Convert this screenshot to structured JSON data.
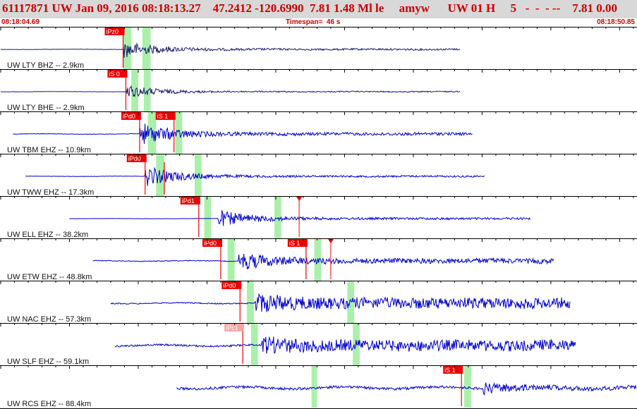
{
  "header": {
    "title": "61117871 UW Jan 09, 2016 08:18:13.27    47.2412 -120.6990  7.81 1.48 Ml le     amyw      UW 01 H     5   -  -  - --    7.81 0.00",
    "start_time": "08:18:04.69",
    "timespan": "Timespan=  46 s",
    "end_time": "08:18:50.85"
  },
  "colors": {
    "trace": "#0000cc",
    "trace_dark": "#1a1a6e",
    "pick": "#ee0000",
    "pick_faint": "#f3a6a6",
    "window": "#aaf0aa",
    "header_bg": "#d8d8d8",
    "header_text": "#cc0000"
  },
  "channels": [
    {
      "label": "UW LTY BHZ -- 2.9km",
      "trace_dark": true,
      "amp": 0.45,
      "noise": 0.02,
      "coda": 0.1,
      "start_s": 0.0,
      "end_s": 33.4,
      "arrival_s": 8.9,
      "picks": [
        {
          "name": "iPz0",
          "t": 8.9
        }
      ],
      "windows_s": [
        [
          8.9,
          9.5
        ],
        [
          10.3,
          10.9
        ]
      ]
    },
    {
      "label": "UW LTY BHE -- 2.9km",
      "trace_dark": true,
      "amp": 0.35,
      "noise": 0.02,
      "coda": 0.08,
      "start_s": 0.0,
      "end_s": 33.4,
      "arrival_s": 9.1,
      "picks": [
        {
          "name": "iS 0",
          "t": 9.1
        }
      ],
      "windows_s": [
        [
          9.5,
          10.0
        ],
        [
          10.4,
          10.9
        ]
      ]
    },
    {
      "label": "UW TBM EHZ -- 10.9km",
      "amp": 0.6,
      "noise": 0.02,
      "coda": 0.12,
      "start_s": 0.9,
      "end_s": 34.3,
      "arrival_s": 10.1,
      "picks": [
        {
          "name": "iPd0",
          "t": 10.1
        },
        {
          "name": "iS 1",
          "t": 12.6
        }
      ],
      "windows_s": [
        [
          10.7,
          11.3
        ],
        [
          12.7,
          13.2
        ]
      ]
    },
    {
      "label": "UW TWW EHZ -- 17.3km",
      "amp": 0.55,
      "noise": 0.015,
      "coda": 0.08,
      "start_s": 1.8,
      "end_s": 35.2,
      "arrival_s": 10.5,
      "picks": [
        {
          "name": "iPd0",
          "t": 10.5
        },
        {
          "name": "",
          "t": 11.9,
          "faint": true
        }
      ],
      "windows_s": [
        [
          11.3,
          11.9
        ],
        [
          14.1,
          14.6
        ]
      ]
    },
    {
      "label": "UW ELL EHZ -- 38.2km",
      "amp": 0.45,
      "noise": 0.01,
      "coda": 0.12,
      "start_s": 5.0,
      "end_s": 38.5,
      "arrival_s": 15.8,
      "picks": [
        {
          "name": "iPd1",
          "t": 14.4
        },
        {
          "name": "",
          "t": 21.7,
          "marker": true
        }
      ],
      "windows_s": [
        [
          14.8,
          15.3
        ],
        [
          19.9,
          20.4
        ]
      ]
    },
    {
      "label": "UW ETW EHZ -- 48.8km",
      "amp": 0.5,
      "noise": 0.04,
      "coda": 0.25,
      "start_s": 6.7,
      "end_s": 40.2,
      "arrival_s": 17.3,
      "picks": [
        {
          "name": "iPd0",
          "t": 16.0
        },
        {
          "name": "iS 1",
          "t": 22.2
        },
        {
          "name": "",
          "t": 24.0,
          "marker": true
        }
      ],
      "windows_s": [
        [
          16.5,
          17.0
        ],
        [
          22.8,
          23.3
        ]
      ]
    },
    {
      "label": "UW NAC EHZ -- 57.3km",
      "amp": 0.55,
      "noise": 0.05,
      "coda": 0.5,
      "start_s": 8.0,
      "end_s": 41.4,
      "arrival_s": 18.5,
      "picks": [
        {
          "name": "iPd0",
          "t": 17.4
        }
      ],
      "windows_s": [
        [
          17.9,
          18.4
        ],
        [
          25.2,
          25.7
        ]
      ]
    },
    {
      "label": "UW SLF EHZ -- 59.1km",
      "amp": 0.5,
      "noise": 0.09,
      "coda": 0.55,
      "start_s": 8.3,
      "end_s": 41.8,
      "arrival_s": 19.0,
      "picks": [
        {
          "name": "iPc1",
          "t": 17.6,
          "faint": true
        }
      ],
      "windows_s": [
        [
          18.2,
          18.7
        ],
        [
          25.6,
          26.1
        ]
      ]
    },
    {
      "label": "UW RCS EHZ -- 88.4km",
      "amp": 0.35,
      "noise": 0.18,
      "coda": 0.3,
      "start_s": 12.8,
      "end_s": 46.2,
      "arrival_s": 35.0,
      "picks": [
        {
          "name": "iS 1",
          "t": 33.5
        }
      ],
      "windows_s": [
        [
          22.6,
          23.0
        ],
        [
          33.7,
          34.2
        ]
      ]
    }
  ]
}
